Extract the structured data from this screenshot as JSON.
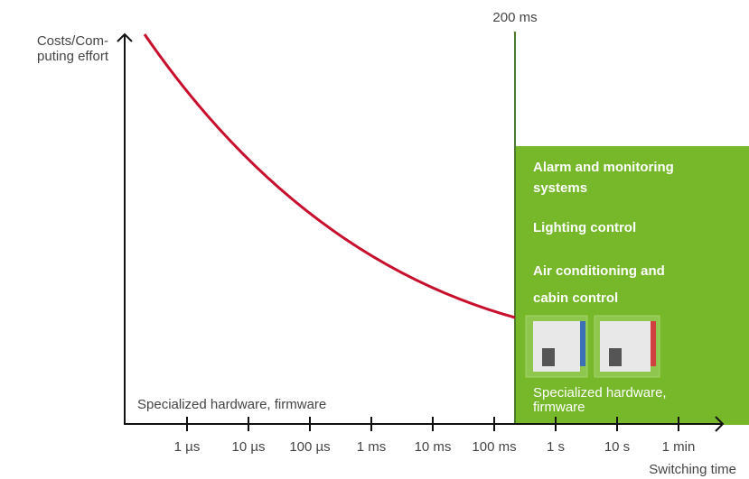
{
  "y_axis_label": [
    "Costs/Com-",
    "puting effort"
  ],
  "x_axis_label": "Switching time",
  "x_ticks": [
    "1 µs",
    "10 µs",
    "100 µs",
    "1 ms",
    "10 ms",
    "100 ms",
    "1 s",
    "10 s",
    "1 min"
  ],
  "threshold_label": "200 ms",
  "left_region_label": "Specialized hardware, firmware",
  "green_region": {
    "items": [
      [
        "Alarm and monitoring",
        "systems"
      ],
      [
        "Lighting control"
      ],
      [
        "Air conditioning and",
        "cabin control"
      ]
    ],
    "footer": [
      "Specialized hardware,",
      "firmware"
    ]
  }
}
